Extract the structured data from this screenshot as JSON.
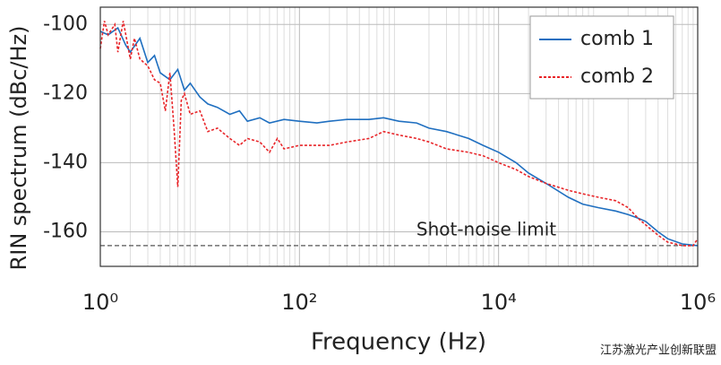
{
  "chart_data": {
    "type": "line",
    "xlabel": "Frequency (Hz)",
    "ylabel": "RIN spectrum (dBc/Hz)",
    "xscale": "log",
    "xlim": [
      1,
      1000000
    ],
    "xticks": [
      {
        "value": 1,
        "label": "10⁰"
      },
      {
        "value": 100,
        "label": "10²"
      },
      {
        "value": 10000,
        "label": "10⁴"
      },
      {
        "value": 1000000,
        "label": "10⁶"
      }
    ],
    "ylim": [
      -170,
      -95
    ],
    "yticks": [
      -100,
      -120,
      -140,
      -160
    ],
    "grid": true,
    "minor_grid": true,
    "legend": "upper right",
    "reference_line": {
      "value": -164,
      "label": "Shot-noise limit",
      "color": "#555555"
    },
    "series": [
      {
        "name": "comb 1",
        "color": "#1f6fc0",
        "style": "solid",
        "x": [
          1,
          1.2,
          1.5,
          1.8,
          2,
          2.5,
          3,
          3.5,
          4,
          5,
          6,
          7,
          8,
          10,
          12,
          15,
          20,
          25,
          30,
          40,
          50,
          70,
          100,
          150,
          200,
          300,
          500,
          700,
          1000,
          1500,
          2000,
          3000,
          5000,
          7000,
          10000,
          15000,
          20000,
          30000,
          50000,
          70000,
          100000,
          150000,
          200000,
          250000,
          300000,
          400000,
          500000,
          700000,
          1000000
        ],
        "values": [
          -102,
          -103,
          -101,
          -106,
          -108,
          -104,
          -111,
          -109,
          -114,
          -116,
          -113,
          -119,
          -117,
          -121,
          -123,
          -124,
          -126,
          -125,
          -128,
          -127,
          -128.5,
          -127.5,
          -128,
          -128.5,
          -128,
          -127.5,
          -127.5,
          -127,
          -128,
          -128.5,
          -130,
          -131,
          -133,
          -135,
          -137,
          -140,
          -143,
          -146,
          -150,
          -152,
          -153,
          -154,
          -155,
          -156,
          -157,
          -160,
          -162,
          -163.5,
          -164
        ]
      },
      {
        "name": "comb 2",
        "color": "#e8262a",
        "style": "dashed",
        "x": [
          1,
          1.1,
          1.2,
          1.4,
          1.5,
          1.7,
          2,
          2.2,
          2.5,
          3,
          3.5,
          4,
          4.5,
          5,
          5.5,
          6,
          6.5,
          7,
          8,
          10,
          12,
          15,
          20,
          25,
          30,
          40,
          50,
          60,
          70,
          100,
          150,
          200,
          300,
          500,
          700,
          1000,
          1500,
          2000,
          3000,
          5000,
          7000,
          10000,
          15000,
          20000,
          30000,
          50000,
          70000,
          100000,
          150000,
          200000,
          250000,
          300000,
          400000,
          500000,
          700000,
          900000,
          1000000
        ],
        "values": [
          -107,
          -99,
          -103,
          -100,
          -108,
          -99,
          -110,
          -104,
          -110,
          -112,
          -116,
          -117,
          -125,
          -114,
          -130,
          -147,
          -122,
          -120,
          -126,
          -125,
          -131,
          -130,
          -133,
          -135,
          -133,
          -134,
          -137,
          -133,
          -136,
          -135,
          -135,
          -135,
          -134,
          -133,
          -131,
          -132,
          -133,
          -134,
          -136,
          -137,
          -138,
          -140,
          -142,
          -144,
          -146,
          -148,
          -149,
          -150,
          -151,
          -153,
          -156,
          -158,
          -161,
          -163,
          -164,
          -164,
          -162
        ]
      }
    ],
    "watermark": "江苏激光产业创新联盟"
  }
}
